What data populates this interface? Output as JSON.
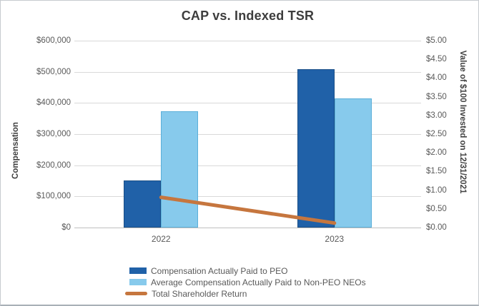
{
  "chart_data": {
    "type": "combo-bar-line",
    "title": "CAP vs. Indexed TSR",
    "categories": [
      "2022",
      "2023"
    ],
    "series": [
      {
        "name": "Compensation Actually Paid to PEO",
        "type": "bar",
        "axis": "left",
        "values": [
          152000,
          508000
        ],
        "color": "#2061A8",
        "border_color": "#1A4E87"
      },
      {
        "name": "Average Compensation Actually Paid to Non-PEO NEOs",
        "type": "bar",
        "axis": "left",
        "values": [
          373000,
          415000
        ],
        "color": "#87CAEC",
        "border_color": "#5BAFD9"
      },
      {
        "name": "Total Shareholder Return",
        "type": "line",
        "axis": "right",
        "values": [
          0.81,
          0.12
        ],
        "color": "#C6763E"
      }
    ],
    "left_axis": {
      "label": "Compensation",
      "range": [
        0,
        600000
      ],
      "ticks": [
        "$600,000",
        "$500,000",
        "$400,000",
        "$300,000",
        "$200,000",
        "$100,000",
        "$0"
      ]
    },
    "right_axis": {
      "label": "Value of $100 Invested on 12/31/2021",
      "range": [
        0,
        5
      ],
      "ticks": [
        "$5.00",
        "$4.50",
        "$4.00",
        "$3.50",
        "$3.00",
        "$2.50",
        "$2.00",
        "$1.50",
        "$1.00",
        "$0.50",
        "$0.00"
      ]
    },
    "grid": true,
    "legend_position": "bottom"
  },
  "colors": {
    "title_text": "#3D3D3D",
    "axis_text": "#595959",
    "gridline": "#D9D9D9",
    "axis_line": "#BFBFBF",
    "background": "#FFFFFF",
    "border": "#C7CBCF"
  }
}
